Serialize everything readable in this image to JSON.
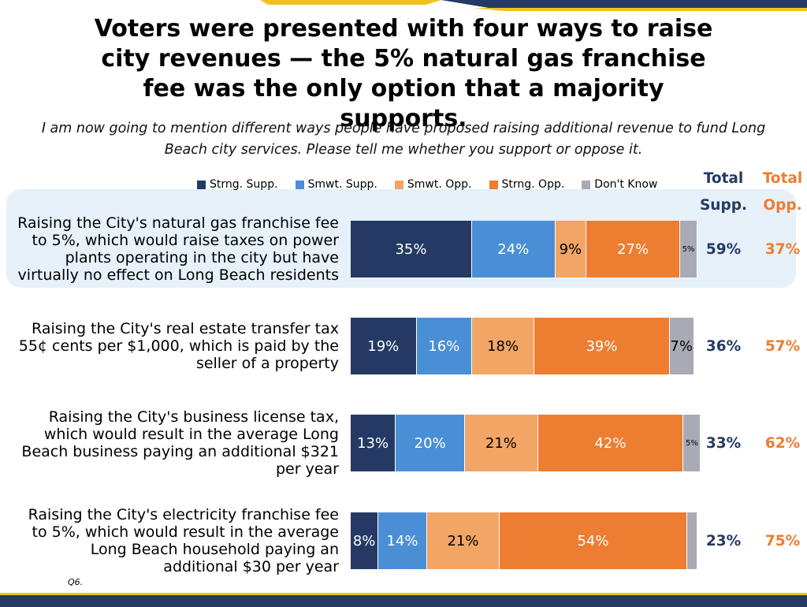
{
  "chart_data": {
    "type": "stacked_barh",
    "title": "Voters were presented with four ways to raise city revenues — the 5% natural gas franchise fee was the only option that a majority supports.",
    "subtitle": "I am now going to mention different ways people have proposed raising additional revenue to fund Long Beach city services. Please tell me whether you support or oppose it.",
    "note": "Q6.",
    "categories": [
      "Raising the City's natural gas franchise fee to 5%, which would raise taxes on power plants operating in the city but have virtually no effect on Long Beach residents",
      "Raising the City's real estate transfer tax 55¢ cents per $1,000, which is paid by the seller of a property",
      "Raising the City's business license tax, which would result in the average Long Beach business paying an additional $321 per year",
      "Raising the City's electricity franchise fee to 5%, which would result in the average Long Beach household paying an additional $30 per year"
    ],
    "xlim": [
      0,
      100
    ],
    "series": [
      {
        "name": "Strng. Supp.",
        "color": "#243a64",
        "values": [
          35,
          19,
          13,
          8
        ],
        "value_labels": [
          "35%",
          "19%",
          "13%",
          "8%"
        ]
      },
      {
        "name": "Smwt. Supp.",
        "color": "#4a8fd6",
        "values": [
          24,
          16,
          20,
          14
        ],
        "value_labels": [
          "24%",
          "16%",
          "20%",
          "14%"
        ]
      },
      {
        "name": "Smwt. Opp.",
        "color": "#f2a564",
        "values": [
          9,
          18,
          21,
          21
        ],
        "value_labels": [
          "9%",
          "18%",
          "21%",
          "21%"
        ]
      },
      {
        "name": "Strng. Opp.",
        "color": "#ed7d31",
        "values": [
          27,
          39,
          42,
          54
        ],
        "value_labels": [
          "27%",
          "39%",
          "42%",
          "54%"
        ]
      },
      {
        "name": "Don't Know",
        "color": "#a9aab5",
        "values": [
          5,
          7,
          5,
          3
        ],
        "value_labels": [
          "5%",
          "7%",
          "5%",
          null
        ]
      }
    ],
    "totals": [
      {
        "name": "Total Supp.",
        "color": "#243a64",
        "values": [
          59,
          36,
          33,
          23
        ],
        "value_labels": [
          "59%",
          "36%",
          "33%",
          "23%"
        ]
      },
      {
        "name": "Total Opp.",
        "color": "#ed7d31",
        "values": [
          37,
          57,
          62,
          75
        ],
        "value_labels": [
          "37%",
          "57%",
          "62%",
          "75%"
        ]
      }
    ],
    "highlight": 0
  }
}
